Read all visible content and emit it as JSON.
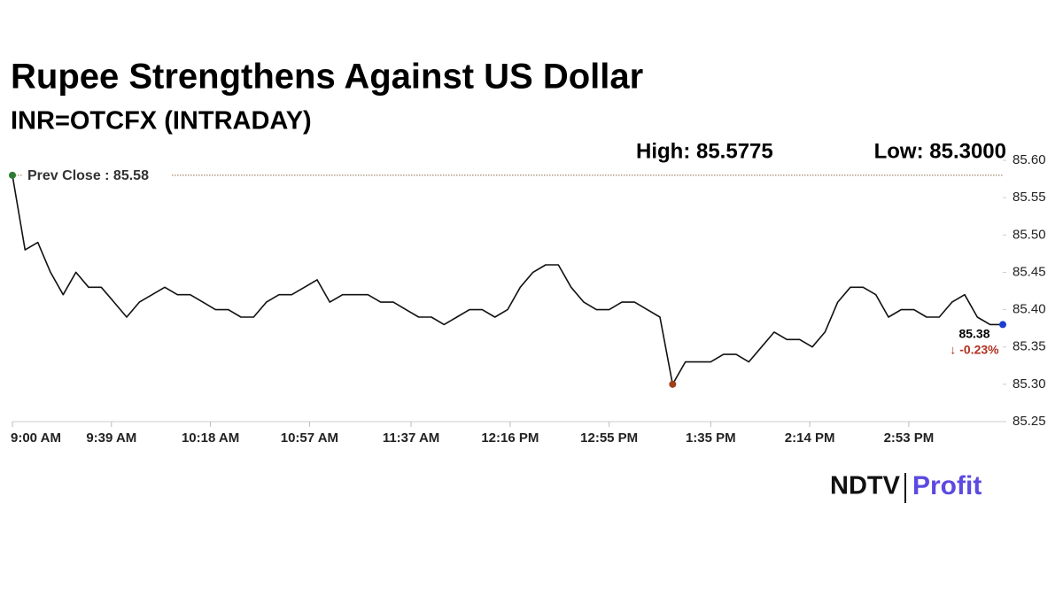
{
  "chart_data": {
    "type": "line",
    "title": "Rupee Strengthens Against US Dollar",
    "subtitle": "INR=OTCFX (INTRADAY)",
    "high_label": "High: 85.5775",
    "low_label": "Low: 85.3000",
    "prev_close": {
      "value": 85.58,
      "label": "Prev Close : 85.58"
    },
    "last_label": "85.38",
    "change_label": "↓ -0.23%",
    "color": "#111111",
    "x": [
      "9:00 AM",
      "9:05 AM",
      "9:10 AM",
      "9:15 AM",
      "9:20 AM",
      "9:25 AM",
      "9:30 AM",
      "9:35 AM",
      "9:40 AM",
      "9:45 AM",
      "9:50 AM",
      "9:55 AM",
      "10:00 AM",
      "10:05 AM",
      "10:10 AM",
      "10:15 AM",
      "10:20 AM",
      "10:25 AM",
      "10:30 AM",
      "10:35 AM",
      "10:40 AM",
      "10:45 AM",
      "10:50 AM",
      "10:55 AM",
      "11:00 AM",
      "11:05 AM",
      "11:10 AM",
      "11:15 AM",
      "11:20 AM",
      "11:25 AM",
      "11:30 AM",
      "11:35 AM",
      "11:40 AM",
      "11:45 AM",
      "11:50 AM",
      "11:55 AM",
      "12:00 PM",
      "12:05 PM",
      "12:10 PM",
      "12:15 PM",
      "12:20 PM",
      "12:25 PM",
      "12:30 PM",
      "12:35 PM",
      "12:40 PM",
      "12:45 PM",
      "12:50 PM",
      "12:55 PM",
      "1:00 PM",
      "1:05 PM",
      "1:10 PM",
      "1:15 PM",
      "1:20 PM",
      "1:25 PM",
      "1:30 PM",
      "1:35 PM",
      "1:40 PM",
      "1:45 PM",
      "1:50 PM",
      "1:55 PM",
      "2:00 PM",
      "2:05 PM",
      "2:10 PM",
      "2:15 PM",
      "2:20 PM",
      "2:25 PM",
      "2:30 PM",
      "2:35 PM",
      "2:40 PM",
      "2:45 PM",
      "2:50 PM",
      "2:55 PM",
      "3:00 PM",
      "3:05 PM",
      "3:10 PM",
      "3:15 PM",
      "3:20 PM",
      "3:25 PM",
      "3:30 PM"
    ],
    "values": [
      85.58,
      85.48,
      85.49,
      85.45,
      85.42,
      85.45,
      85.43,
      85.43,
      85.41,
      85.39,
      85.41,
      85.42,
      85.43,
      85.42,
      85.42,
      85.41,
      85.4,
      85.4,
      85.39,
      85.39,
      85.41,
      85.42,
      85.42,
      85.43,
      85.44,
      85.41,
      85.42,
      85.42,
      85.42,
      85.41,
      85.41,
      85.4,
      85.39,
      85.39,
      85.38,
      85.39,
      85.4,
      85.4,
      85.39,
      85.4,
      85.43,
      85.45,
      85.46,
      85.46,
      85.43,
      85.41,
      85.4,
      85.4,
      85.41,
      85.41,
      85.4,
      85.39,
      85.3,
      85.33,
      85.33,
      85.33,
      85.34,
      85.34,
      85.33,
      85.35,
      85.37,
      85.36,
      85.36,
      85.35,
      85.37,
      85.41,
      85.43,
      85.43,
      85.42,
      85.39,
      85.4,
      85.4,
      85.39,
      85.39,
      85.41,
      85.42,
      85.39,
      85.38,
      85.38
    ],
    "xlim": [
      "9:00 AM",
      "3:30 PM"
    ],
    "xticks": [
      "9:00 AM",
      "9:39 AM",
      "10:18 AM",
      "10:57 AM",
      "11:37 AM",
      "12:16 PM",
      "12:55 PM",
      "1:35 PM",
      "2:14 PM",
      "2:53 PM"
    ],
    "ylim": [
      85.25,
      85.6
    ],
    "yticks": [
      {
        "value": 85.25,
        "label": "85.25"
      },
      {
        "value": 85.3,
        "label": "85.30"
      },
      85.35,
      {
        "value": 85.4,
        "label": "85.40"
      },
      85.45,
      {
        "value": 85.5,
        "label": "85.50"
      },
      85.55,
      {
        "value": 85.6,
        "label": "85.60"
      }
    ],
    "logo": {
      "left": "NDTV",
      "right": "Profit"
    }
  }
}
